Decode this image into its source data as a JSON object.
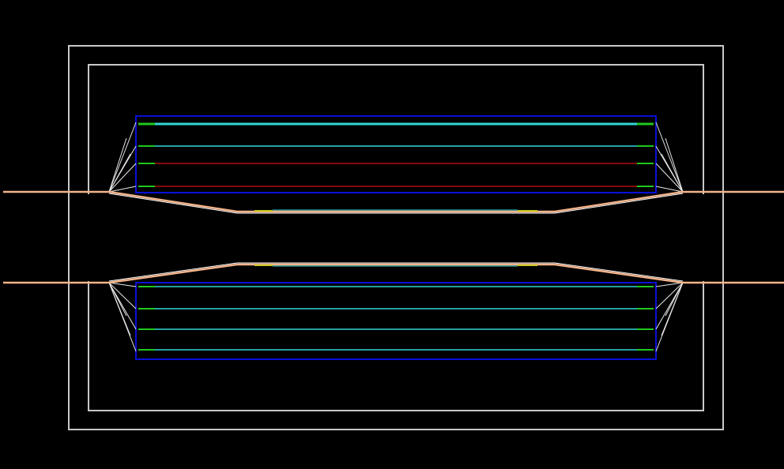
{
  "diagram": {
    "background": "#000000",
    "colors": {
      "frame": "#c8c8c8",
      "boundary": "#0a10d8",
      "beampipe": "#f2b48a",
      "layer_cyan": "#32d6d6",
      "layer_red": "#b00e0e",
      "layer_green": "#1ec81e",
      "layer_yellow": "#c8c81e",
      "support_lines": "#e8e8e8"
    },
    "top_half_layers": [
      "cyan",
      "cyan",
      "red",
      "red"
    ],
    "bottom_half_layers": [
      "cyan",
      "cyan",
      "cyan",
      "cyan"
    ]
  }
}
